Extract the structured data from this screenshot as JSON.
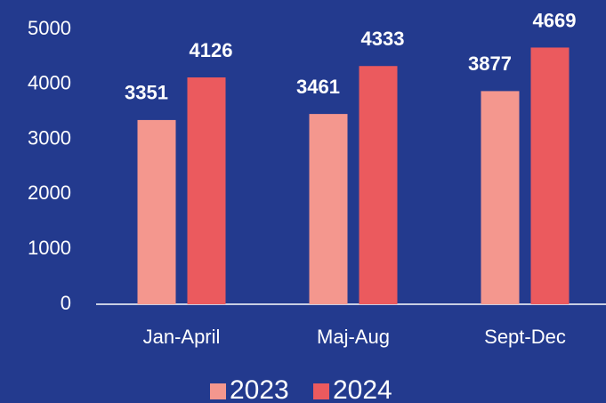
{
  "chart_data": {
    "type": "bar",
    "categories": [
      "Jan-April",
      "Maj-Aug",
      "Sept-Dec"
    ],
    "series": [
      {
        "name": "2023",
        "color": "#f4978e",
        "values": [
          3351,
          3461,
          3877
        ]
      },
      {
        "name": "2024",
        "color": "#eb5a5e",
        "values": [
          4126,
          4333,
          4669
        ]
      }
    ],
    "ylim": [
      0,
      5000
    ],
    "yticks": [
      0,
      1000,
      2000,
      3000,
      4000,
      5000
    ],
    "grid": false,
    "legend": "bottom"
  }
}
